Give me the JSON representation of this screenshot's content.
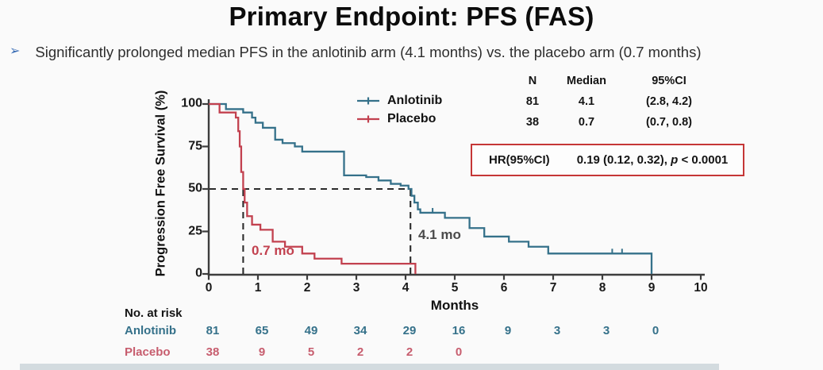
{
  "title": "Primary Endpoint: PFS (FAS)",
  "bullet": {
    "marker": "➢",
    "text": "Significantly prolonged median PFS in the anlotinib arm (4.1 months) vs. the placebo arm (0.7 months)"
  },
  "colors": {
    "axis": "#3d3d3d",
    "dashed": "#2c2c2c",
    "hr_border": "#c53636",
    "bullet_arrow": "#3a6db5"
  },
  "chart_data": {
    "type": "line",
    "subtype": "kaplan-meier-step",
    "xlabel": "Months",
    "ylabel": "Progression Free Survival (%)",
    "xlim": [
      0,
      10
    ],
    "ylim": [
      0,
      100
    ],
    "x_ticks": [
      0,
      1,
      2,
      3,
      4,
      5,
      6,
      7,
      8,
      9,
      10
    ],
    "y_ticks": [
      0,
      25,
      50,
      75,
      100
    ],
    "grid": false,
    "legend_position": "top-center",
    "series": [
      {
        "name": "Anlotinib",
        "color": "#35718a",
        "n": 81,
        "median_months": 4.1,
        "ci_95": "(2.8, 4.2)",
        "steps": [
          [
            0,
            100
          ],
          [
            0.35,
            97
          ],
          [
            0.7,
            95
          ],
          [
            0.88,
            92
          ],
          [
            0.95,
            89
          ],
          [
            1.1,
            86
          ],
          [
            1.35,
            79
          ],
          [
            1.5,
            77
          ],
          [
            1.75,
            75
          ],
          [
            1.9,
            72
          ],
          [
            2.75,
            58
          ],
          [
            3.2,
            57
          ],
          [
            3.45,
            55
          ],
          [
            3.7,
            53
          ],
          [
            3.9,
            52
          ],
          [
            4.06,
            50
          ],
          [
            4.12,
            46
          ],
          [
            4.18,
            42
          ],
          [
            4.25,
            38
          ],
          [
            4.3,
            36
          ],
          [
            4.8,
            33
          ],
          [
            5.3,
            27
          ],
          [
            5.6,
            22
          ],
          [
            6.1,
            19
          ],
          [
            6.5,
            16
          ],
          [
            6.9,
            12
          ],
          [
            9.0,
            12
          ],
          [
            9.0,
            0
          ]
        ],
        "censor_marks": [
          [
            4.55,
            36
          ],
          [
            8.2,
            12
          ],
          [
            8.4,
            12
          ]
        ]
      },
      {
        "name": "Placebo",
        "color": "#c2414f",
        "n": 38,
        "median_months": 0.7,
        "ci_95": "(0.7, 0.8)",
        "steps": [
          [
            0,
            100
          ],
          [
            0.22,
            95
          ],
          [
            0.55,
            92
          ],
          [
            0.6,
            84
          ],
          [
            0.63,
            75
          ],
          [
            0.66,
            60
          ],
          [
            0.7,
            50
          ],
          [
            0.73,
            42
          ],
          [
            0.78,
            34
          ],
          [
            0.88,
            29
          ],
          [
            1.05,
            26
          ],
          [
            1.3,
            19
          ],
          [
            1.55,
            16
          ],
          [
            1.9,
            12
          ],
          [
            2.15,
            9
          ],
          [
            2.7,
            6
          ],
          [
            4.2,
            6
          ],
          [
            4.2,
            0
          ]
        ],
        "censor_marks": []
      }
    ],
    "stats_table": {
      "headers": [
        "N",
        "Median",
        "95%CI"
      ]
    },
    "reference_lines": {
      "horizontal_survival_pct": 50,
      "vertical_months": [
        0.7,
        4.1
      ]
    },
    "median_labels": [
      {
        "text": "0.7 mo",
        "color": "#c2414f"
      },
      {
        "text": "4.1 mo",
        "color": "#4a4a4a"
      }
    ],
    "hr_annotation": {
      "label": "HR(95%CI)",
      "value_prefix": "0.19 (0.12, 0.32), ",
      "p_symbol": "p",
      "p_rest": " < 0.0001"
    },
    "risk_table": {
      "title": "No. at risk",
      "rows": [
        {
          "label": "Anlotinib",
          "color": "#35718a",
          "values": [
            81,
            65,
            49,
            34,
            29,
            16,
            9,
            3,
            3,
            0
          ]
        },
        {
          "label": "Placebo",
          "color": "#c75d6e",
          "values": [
            38,
            9,
            5,
            2,
            2,
            0
          ]
        }
      ]
    }
  }
}
